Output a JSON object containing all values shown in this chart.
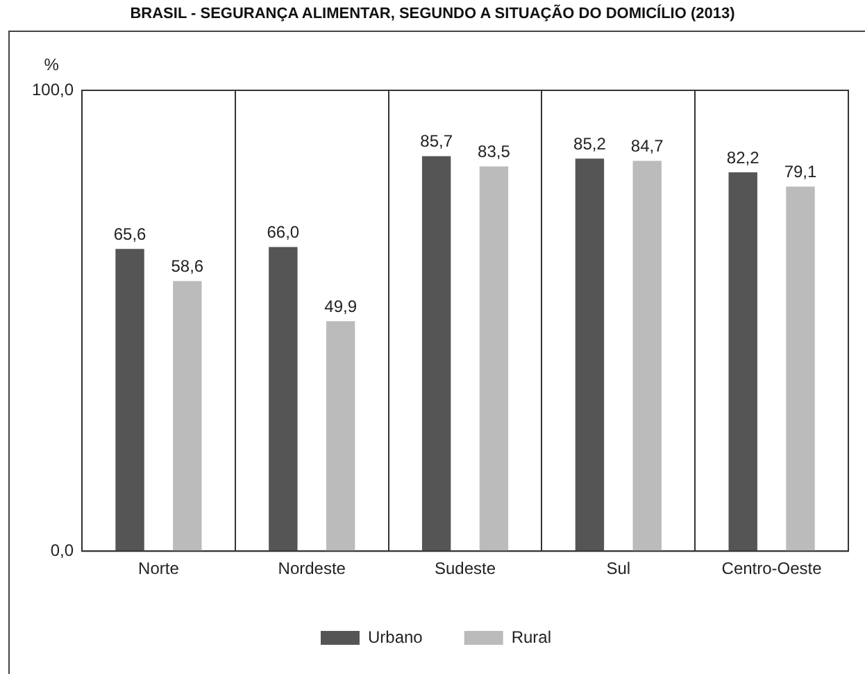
{
  "chart_data": {
    "type": "bar",
    "title": "BRASIL - SEGURANÇA ALIMENTAR, SEGUNDO A SITUAÇÃO DO DOMICÍLIO (2013)",
    "ylabel": "%",
    "categories": [
      "Norte",
      "Nordeste",
      "Sudeste",
      "Sul",
      "Centro-Oeste"
    ],
    "series": [
      {
        "name": "Urbano",
        "color": "#555555",
        "values": [
          65.6,
          66.0,
          85.7,
          85.2,
          82.2
        ],
        "value_labels": [
          "65,6",
          "66,0",
          "85,7",
          "85,2",
          "82,2"
        ]
      },
      {
        "name": "Rural",
        "color": "#bbbbbb",
        "values": [
          58.6,
          49.9,
          83.5,
          84.7,
          79.1
        ],
        "value_labels": [
          "58,6",
          "49,9",
          "83,5",
          "84,7",
          "79,1"
        ]
      }
    ],
    "ylim": [
      0,
      100
    ],
    "yticks": [
      {
        "value": 0,
        "label": "0,0"
      },
      {
        "value": 100,
        "label": "100,0"
      }
    ],
    "grid": "x",
    "legend": "bottom"
  }
}
